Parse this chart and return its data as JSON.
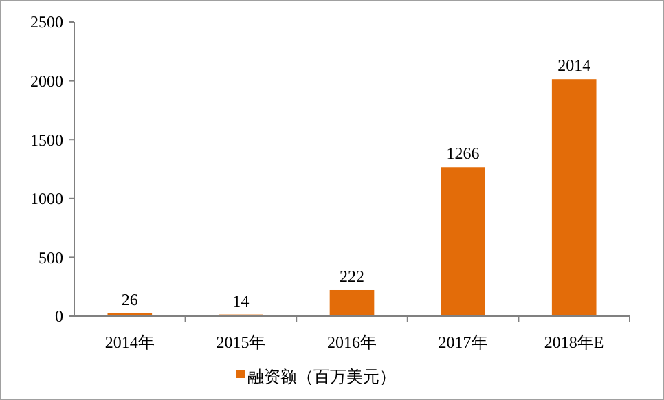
{
  "chart_data": {
    "type": "bar",
    "categories": [
      "2014年",
      "2015年",
      "2016年",
      "2017年",
      "2018年E"
    ],
    "series": [
      {
        "name": "融资额（百万美元）",
        "color": "#e36c09",
        "values": [
          26,
          14,
          222,
          1266,
          2014
        ]
      }
    ],
    "ylim": [
      0,
      2500
    ],
    "yticks": [
      0,
      500,
      1000,
      1500,
      2000,
      2500
    ],
    "data_labels": true,
    "legend": "bottom",
    "grid": false
  }
}
